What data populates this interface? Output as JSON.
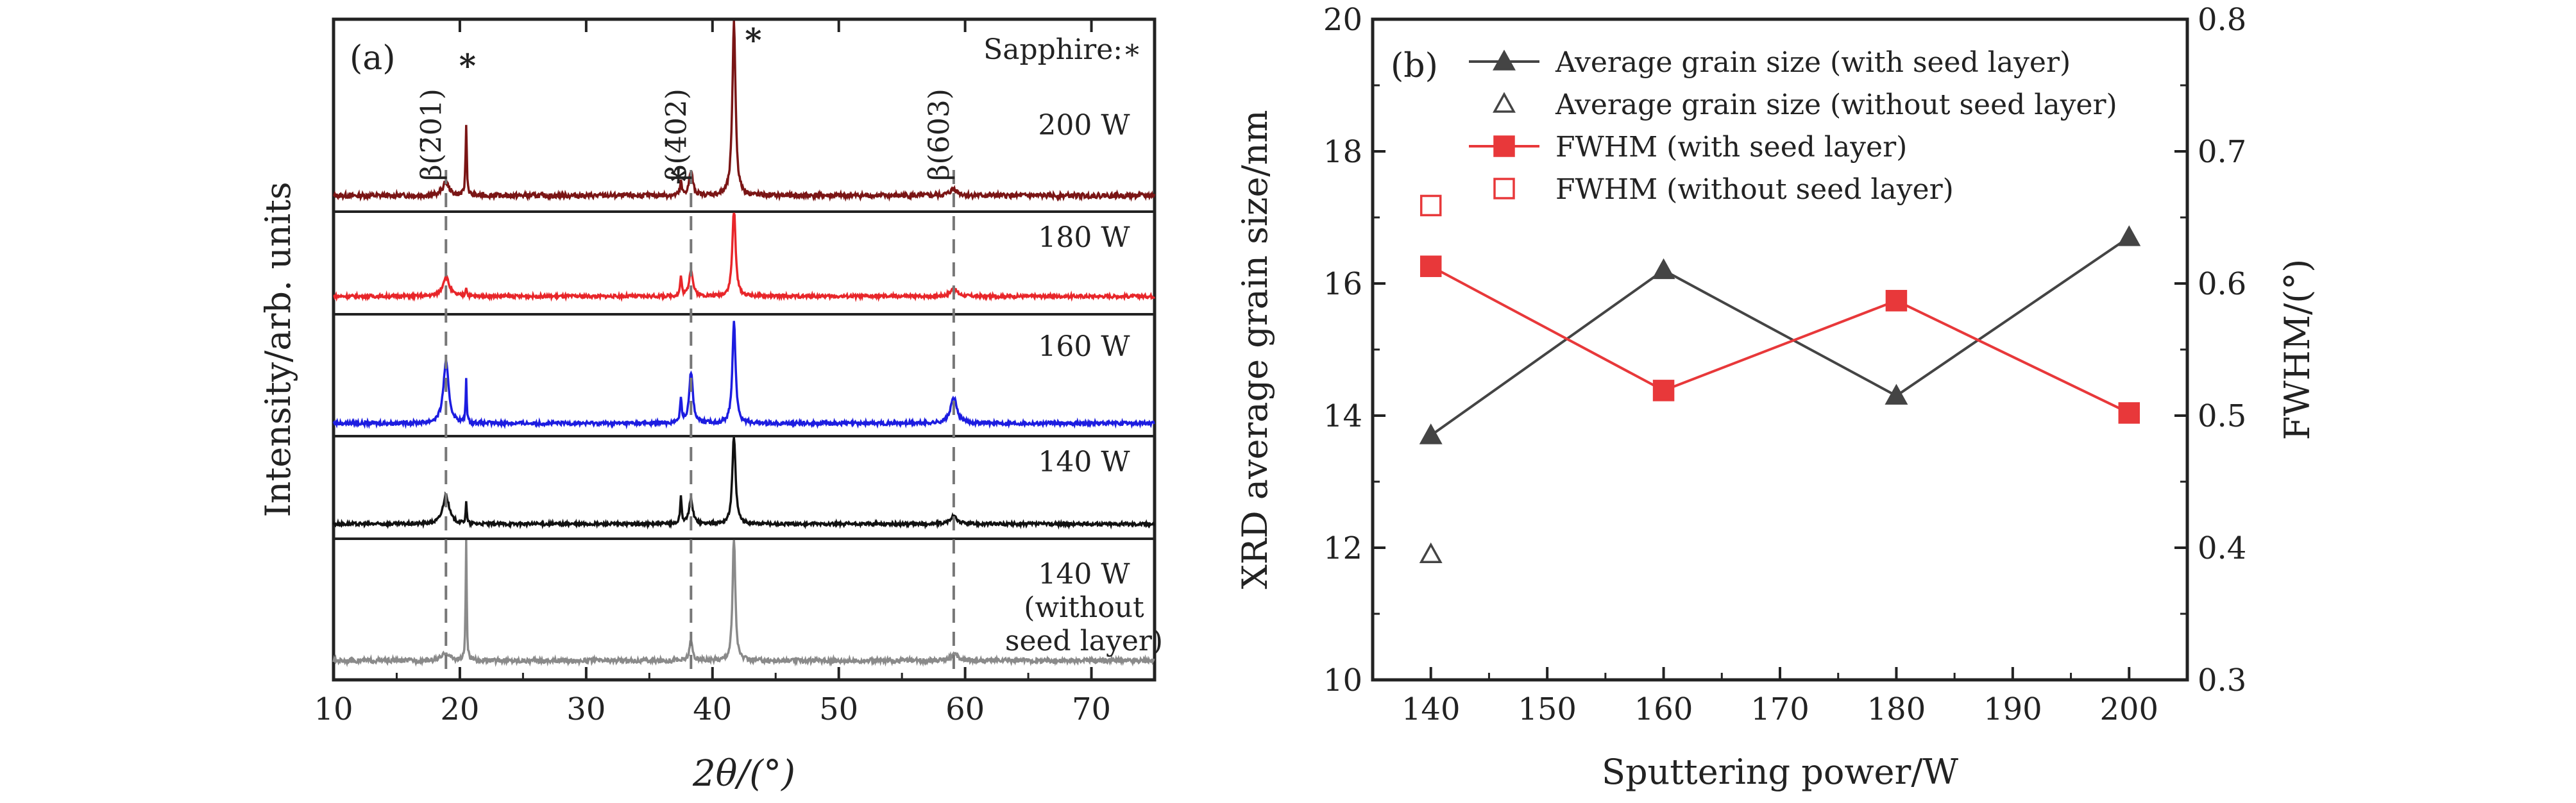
{
  "chart_data": [
    {
      "type": "line",
      "panel_label": "(a)",
      "xlabel": "2θ/(°)",
      "ylabel": "Intensity/arb. units",
      "xlim": [
        10,
        75
      ],
      "xticks": [
        "10",
        "20",
        "30",
        "40",
        "50",
        "60",
        "70"
      ],
      "annotation_sapphire": "Sapphire:∗",
      "star": "∗",
      "peak_labels": [
        "β(2̄01)",
        "β(4̄02)",
        "β(6̄03)"
      ],
      "peak_positions": [
        18.9,
        38.3,
        59.1
      ],
      "sapphire_peaks": [
        20.5,
        37.5,
        41.7
      ],
      "series": [
        {
          "name": "200 W",
          "color": "#7a1515",
          "peaks": [
            {
              "x": 18.9,
              "h": 0.1,
              "w": 0.6
            },
            {
              "x": 20.5,
              "h": 0.52,
              "w": 0.12
            },
            {
              "x": 37.5,
              "h": 0.1,
              "w": 0.15
            },
            {
              "x": 38.3,
              "h": 0.18,
              "w": 0.35
            },
            {
              "x": 41.7,
              "h": 1.3,
              "w": 0.3
            },
            {
              "x": 59.1,
              "h": 0.05,
              "w": 0.7
            }
          ]
        },
        {
          "name": "180 W",
          "color": "#e8262a",
          "peaks": [
            {
              "x": 18.9,
              "h": 0.22,
              "w": 0.6
            },
            {
              "x": 20.5,
              "h": 0.1,
              "w": 0.12
            },
            {
              "x": 37.5,
              "h": 0.22,
              "w": 0.15
            },
            {
              "x": 38.3,
              "h": 0.3,
              "w": 0.35
            },
            {
              "x": 41.7,
              "h": 1.0,
              "w": 0.3
            },
            {
              "x": 59.1,
              "h": 0.09,
              "w": 0.6
            }
          ]
        },
        {
          "name": "160 W",
          "color": "#1c1ce0",
          "peaks": [
            {
              "x": 18.9,
              "h": 0.6,
              "w": 0.5
            },
            {
              "x": 20.5,
              "h": 0.42,
              "w": 0.1
            },
            {
              "x": 37.5,
              "h": 0.25,
              "w": 0.15
            },
            {
              "x": 38.3,
              "h": 0.5,
              "w": 0.35
            },
            {
              "x": 41.7,
              "h": 1.0,
              "w": 0.3
            },
            {
              "x": 59.1,
              "h": 0.25,
              "w": 0.6
            }
          ]
        },
        {
          "name": "140 W",
          "color": "#111111",
          "peaks": [
            {
              "x": 18.9,
              "h": 0.32,
              "w": 0.6
            },
            {
              "x": 20.5,
              "h": 0.25,
              "w": 0.1
            },
            {
              "x": 37.5,
              "h": 0.3,
              "w": 0.15
            },
            {
              "x": 38.3,
              "h": 0.28,
              "w": 0.35
            },
            {
              "x": 41.7,
              "h": 1.0,
              "w": 0.3
            },
            {
              "x": 59.1,
              "h": 0.08,
              "w": 0.7
            }
          ]
        },
        {
          "name": "140 W\n(without\nseed layer)",
          "color": "#8a8a8a",
          "peaks": [
            {
              "x": 18.9,
              "h": 0.06,
              "w": 0.7
            },
            {
              "x": 20.5,
              "h": 0.95,
              "w": 0.1
            },
            {
              "x": 38.3,
              "h": 0.15,
              "w": 0.3
            },
            {
              "x": 41.7,
              "h": 1.0,
              "w": 0.25
            },
            {
              "x": 59.1,
              "h": 0.05,
              "w": 0.7
            }
          ]
        }
      ]
    },
    {
      "type": "line",
      "panel_label": "(b)",
      "xlabel": "Sputtering power/W",
      "ylabel": "XRD average grain size/nm",
      "y2label": "FWHM/(°)",
      "xlim": [
        135,
        205
      ],
      "ylim": [
        10,
        20
      ],
      "y2lim": [
        0.3,
        0.8
      ],
      "xticks": [
        "140",
        "150",
        "160",
        "170",
        "180",
        "190",
        "200"
      ],
      "yticks": [
        "10",
        "12",
        "14",
        "16",
        "18",
        "20"
      ],
      "y2ticks": [
        "0.3",
        "0.4",
        "0.5",
        "0.6",
        "0.7",
        "0.8"
      ],
      "series": [
        {
          "name": "Average grain size (with seed layer)",
          "axis": "left",
          "marker": "filled-triangle",
          "color": "#444444",
          "line": true,
          "x": [
            140,
            160,
            180,
            200
          ],
          "y": [
            13.7,
            16.2,
            14.3,
            16.7
          ]
        },
        {
          "name": "Average grain size (without seed layer)",
          "axis": "left",
          "marker": "open-triangle",
          "color": "#444444",
          "line": false,
          "x": [
            140
          ],
          "y": [
            11.9
          ]
        },
        {
          "name": "FWHM (with seed layer)",
          "axis": "right",
          "marker": "filled-square",
          "color": "#e8383a",
          "line": true,
          "x": [
            140,
            160,
            180,
            200
          ],
          "y": [
            0.613,
            0.519,
            0.587,
            0.502
          ]
        },
        {
          "name": "FWHM (without seed layer)",
          "axis": "right",
          "marker": "open-square",
          "color": "#e8383a",
          "line": false,
          "x": [
            140
          ],
          "y": [
            0.659
          ]
        }
      ],
      "legend_position": "top-left"
    }
  ]
}
